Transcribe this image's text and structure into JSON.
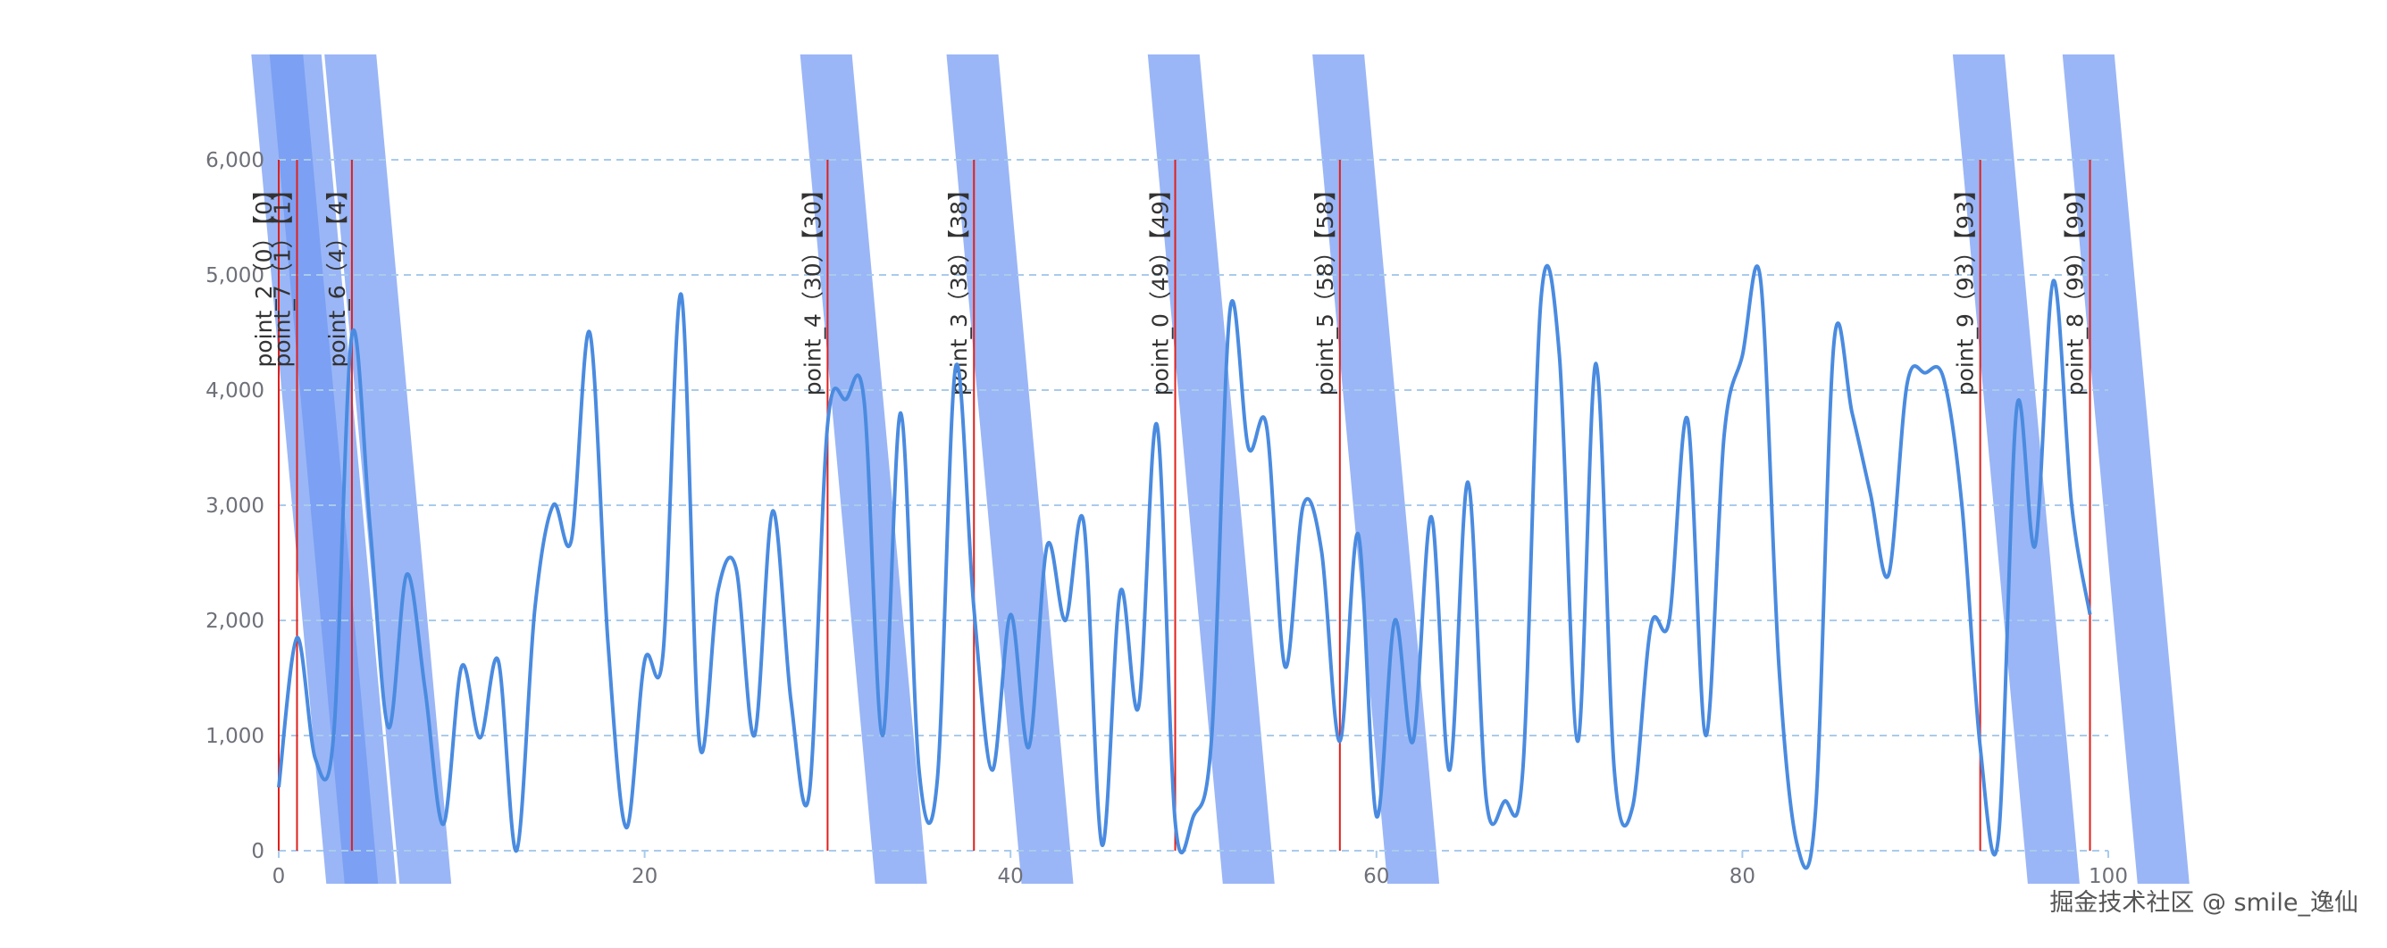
{
  "chart_data": {
    "type": "line",
    "x": [
      0,
      1,
      2,
      3,
      4,
      5,
      6,
      7,
      8,
      9,
      10,
      11,
      12,
      13,
      14,
      15,
      16,
      17,
      18,
      19,
      20,
      21,
      22,
      23,
      24,
      25,
      26,
      27,
      28,
      29,
      30,
      31,
      32,
      33,
      34,
      35,
      36,
      37,
      38,
      39,
      40,
      41,
      42,
      43,
      44,
      45,
      46,
      47,
      48,
      49,
      50,
      51,
      52,
      53,
      54,
      55,
      56,
      57,
      58,
      59,
      60,
      61,
      62,
      63,
      64,
      65,
      66,
      67,
      68,
      69,
      70,
      71,
      72,
      73,
      74,
      75,
      76,
      77,
      78,
      79,
      80,
      81,
      82,
      83,
      84,
      85,
      86,
      87,
      88,
      89,
      90,
      91,
      92,
      93,
      94,
      95,
      96,
      97,
      98,
      99
    ],
    "series": [
      {
        "color": "#4a8be0",
        "values": [
          550,
          1850,
          800,
          1000,
          4480,
          2800,
          1070,
          2400,
          1400,
          230,
          1600,
          980,
          1650,
          0,
          2100,
          3000,
          2700,
          4500,
          1800,
          200,
          1650,
          1700,
          4830,
          930,
          2250,
          2450,
          1000,
          2950,
          1300,
          500,
          3700,
          3920,
          3900,
          1000,
          3800,
          700,
          620,
          4200,
          2100,
          700,
          2050,
          900,
          2650,
          2000,
          2850,
          50,
          2250,
          1250,
          3700,
          250,
          300,
          1000,
          4700,
          3500,
          3680,
          1600,
          3000,
          2600,
          950,
          2750,
          300,
          2000,
          950,
          2900,
          700,
          3200,
          450,
          430,
          700,
          4800,
          4300,
          950,
          4230,
          700,
          380,
          1950,
          2000,
          3750,
          1000,
          3600,
          4300,
          4950,
          1600,
          50,
          350,
          4400,
          3800,
          3100,
          2400,
          4050,
          4150,
          4100,
          3000,
          900,
          120,
          3850,
          2650,
          4950,
          3000,
          2050
        ]
      }
    ],
    "markers": [
      {
        "label": "point_2（0）【0】",
        "x": 0
      },
      {
        "label": "point_7（1）【1】",
        "x": 1
      },
      {
        "label": "point_6（4）【4】",
        "x": 4
      },
      {
        "label": "point_4（30）【30】",
        "x": 30
      },
      {
        "label": "point_3（38）【38】",
        "x": 38
      },
      {
        "label": "point_0（49）【49】",
        "x": 49
      },
      {
        "label": "point_5（58）【58】",
        "x": 58
      },
      {
        "label": "point_9（93）【93】",
        "x": 93
      },
      {
        "label": "point_8（99）【99】",
        "x": 99
      }
    ],
    "marker_color": "#e0201b",
    "band_color": "#6f97f2",
    "xlim": [
      0,
      100
    ],
    "xticks": [
      0,
      20,
      40,
      60,
      80,
      100
    ],
    "ylim": [
      0,
      6000
    ],
    "yticks": [
      0,
      {
        "value": 1000,
        "label": "1,000"
      },
      {
        "value": 2000,
        "label": "2,000"
      },
      {
        "value": 3000,
        "label": "3,000"
      },
      {
        "value": 4000,
        "label": "4,000"
      },
      {
        "value": 5000,
        "label": "5,000"
      },
      {
        "value": 6000,
        "label": "6,000"
      }
    ],
    "grid": true
  },
  "watermark": "掘金技术社区 @ smile_逸仙"
}
